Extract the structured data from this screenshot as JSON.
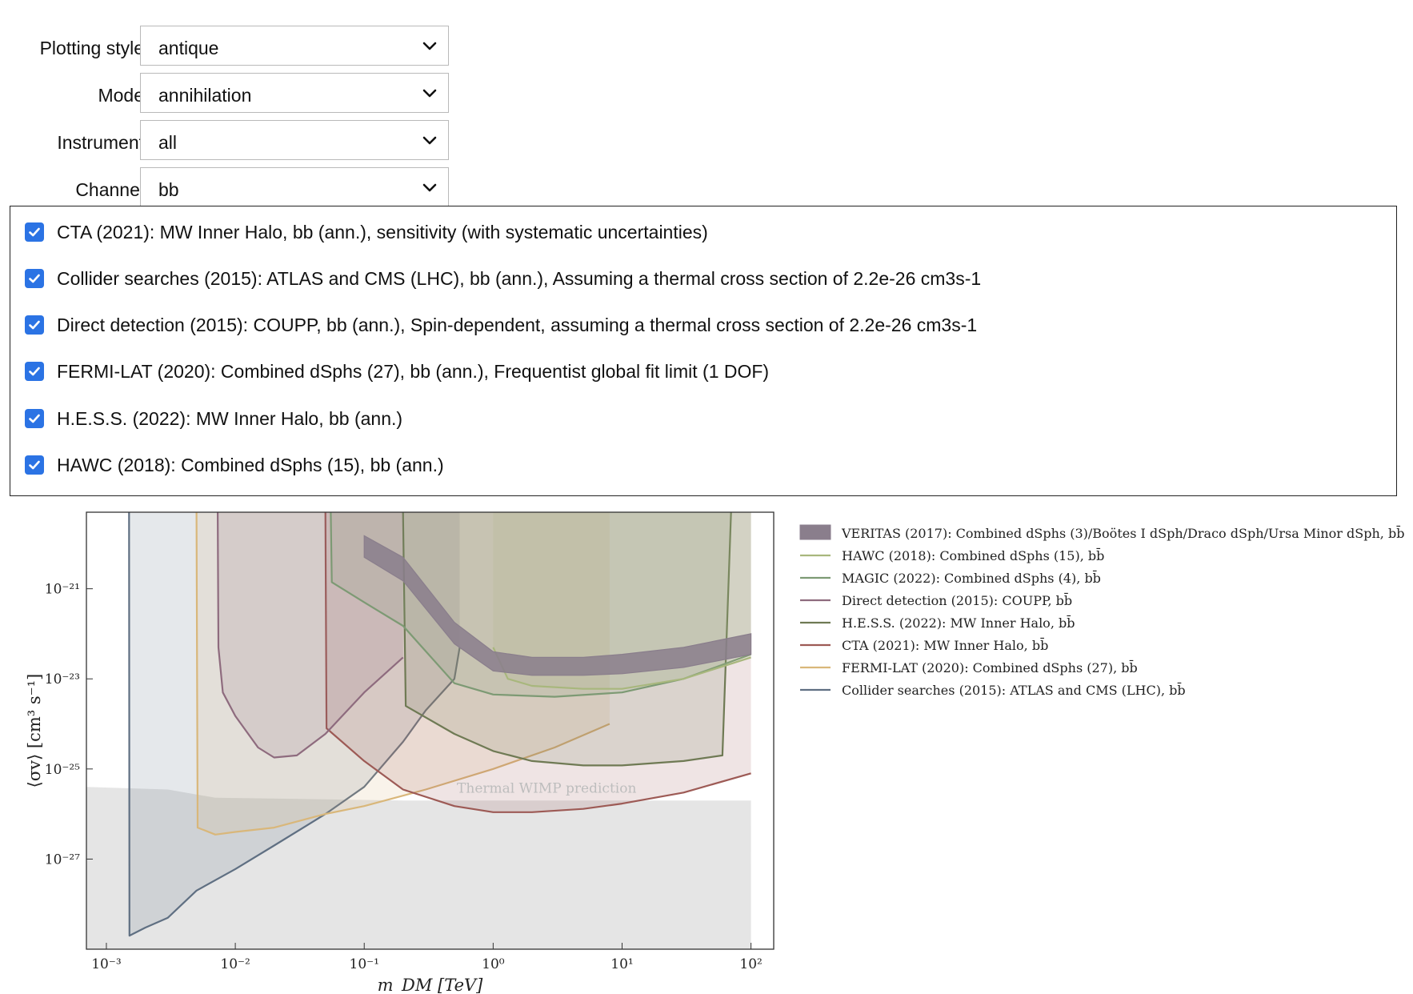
{
  "controls": [
    {
      "label": "Plotting style",
      "value": "antique"
    },
    {
      "label": "Mode",
      "value": "annihilation"
    },
    {
      "label": "Instrument",
      "value": "all"
    },
    {
      "label": "Channel",
      "value": "bb"
    }
  ],
  "checklist": [
    {
      "checked": true,
      "label": "CTA (2021): MW Inner Halo, bb (ann.), sensitivity (with systematic uncertainties)"
    },
    {
      "checked": true,
      "label": "Collider searches (2015): ATLAS and CMS (LHC), bb (ann.), Assuming a thermal cross section of 2.2e-26 cm3s-1"
    },
    {
      "checked": true,
      "label": "Direct detection (2015): COUPP, bb (ann.), Spin-dependent, assuming a thermal cross section of 2.2e-26 cm3s-1"
    },
    {
      "checked": true,
      "label": "FERMI-LAT (2020): Combined dSphs (27), bb (ann.), Frequentist global fit limit (1 DOF)"
    },
    {
      "checked": true,
      "label": "H.E.S.S. (2022): MW Inner Halo, bb (ann.)"
    },
    {
      "checked": true,
      "label": "HAWC (2018): Combined dSphs (15), bb (ann.)"
    }
  ],
  "chart_data": {
    "type": "area",
    "xlabel": "m_DM [TeV]",
    "ylabel": "⟨σv⟩ [cm³ s⁻¹]",
    "xscale": "log",
    "yscale": "log",
    "xlim": [
      0.0007,
      150
    ],
    "ylim": [
      1e-29,
      5e-20
    ],
    "xticks": [
      "10⁻³",
      "10⁻²",
      "10⁻¹",
      "10⁰",
      "10¹",
      "10²"
    ],
    "yticks": [
      "10⁻²¹",
      "10⁻²³",
      "10⁻²⁵",
      "10⁻²⁷"
    ],
    "annotation": "Thermal WIMP prediction",
    "legend_position": "right",
    "thermal_band": {
      "x": [
        0.0007,
        0.003,
        0.007,
        0.2,
        100
      ],
      "upper": [
        4e-26,
        3.5e-26,
        2.3e-26,
        2e-26,
        2e-26
      ]
    },
    "series": [
      {
        "name": "VERITAS (2017): Combined dSphs (3)/Boötes I dSph/Draco dSph/Ursa Minor dSph, bb̄",
        "color": "#8a7e8c",
        "band": true,
        "x": [
          0.1,
          0.2,
          0.5,
          1,
          2,
          5,
          10,
          30,
          100
        ],
        "lower": [
          5e-21,
          1.5e-21,
          6e-23,
          1.5e-23,
          1.2e-23,
          1.2e-23,
          1.3e-23,
          1.8e-23,
          3.5e-23
        ],
        "upper": [
          1.5e-20,
          5e-21,
          1.8e-22,
          4e-23,
          3e-23,
          3e-23,
          3.5e-23,
          5e-23,
          1e-22
        ]
      },
      {
        "name": "HAWC (2018): Combined dSphs (15), bb̄",
        "color": "#a8b77d",
        "x": [
          1,
          1.3,
          2,
          5,
          10,
          30,
          100
        ],
        "y": [
          5e-23,
          1e-23,
          7e-24,
          6e-24,
          6e-24,
          1e-23,
          3e-23
        ]
      },
      {
        "name": "MAGIC (2022): Combined dSphs (4), bb̄",
        "color": "#7d9a74",
        "x": [
          0.055,
          0.056,
          0.1,
          0.2,
          0.5,
          1,
          3,
          10,
          30,
          100
        ],
        "y": [
          5e-20,
          1.4e-21,
          5e-22,
          1.5e-22,
          8e-24,
          4.5e-24,
          4e-24,
          5e-24,
          1e-23,
          3.5e-23
        ]
      },
      {
        "name": "Direct detection (2015): COUPP, bb̄",
        "color": "#8e6b7e",
        "x": [
          0.0073,
          0.0074,
          0.008,
          0.01,
          0.015,
          0.02,
          0.03,
          0.05,
          0.1,
          0.2
        ],
        "y": [
          5e-20,
          5e-23,
          5e-24,
          1.5e-24,
          3e-25,
          1.8e-25,
          2e-25,
          6e-25,
          5e-24,
          3e-23
        ]
      },
      {
        "name": "H.E.S.S. (2022): MW Inner Halo, bb̄",
        "color": "#6f7a54",
        "x": [
          0.2,
          0.21,
          0.5,
          1,
          2,
          5,
          10,
          30,
          60,
          70
        ],
        "y": [
          5e-20,
          2.5e-24,
          6e-25,
          2.5e-25,
          1.5e-25,
          1.2e-25,
          1.2e-25,
          1.5e-25,
          2e-25,
          5e-20
        ]
      },
      {
        "name": "CTA (2021): MW Inner Halo, bb̄",
        "color": "#9d5a55",
        "x": [
          0.05,
          0.051,
          0.1,
          0.2,
          0.5,
          1,
          2,
          5,
          10,
          30,
          100
        ],
        "y": [
          5e-20,
          8e-25,
          1.5e-25,
          3.5e-26,
          1.5e-26,
          1.1e-26,
          1.1e-26,
          1.3e-26,
          1.7e-26,
          3e-26,
          8e-26
        ]
      },
      {
        "name": "FERMI-LAT (2020): Combined dSphs (27), bb̄",
        "color": "#d9b77a",
        "x": [
          0.005,
          0.0051,
          0.007,
          0.01,
          0.02,
          0.05,
          0.1,
          0.3,
          1,
          3,
          8
        ],
        "y": [
          5e-20,
          5e-27,
          3.5e-27,
          4e-27,
          5e-27,
          1e-26,
          1.5e-26,
          3.5e-26,
          1e-25,
          3e-25,
          1e-24
        ]
      },
      {
        "name": "Collider searches (2015): ATLAS and CMS (LHC), bb̄",
        "color": "#5f6f82",
        "x": [
          0.0015,
          0.00151,
          0.002,
          0.003,
          0.005,
          0.01,
          0.02,
          0.05,
          0.1,
          0.2,
          0.3,
          0.5,
          0.55
        ],
        "y": [
          5e-20,
          2e-29,
          3e-29,
          5e-29,
          2e-28,
          6e-28,
          2e-27,
          1e-26,
          4e-26,
          4e-25,
          2e-24,
          1e-23,
          5e-23
        ]
      }
    ]
  }
}
